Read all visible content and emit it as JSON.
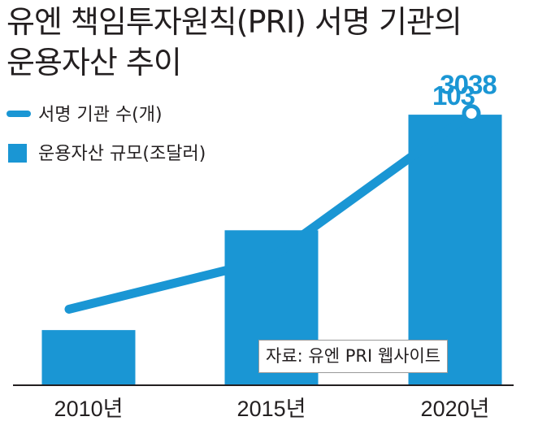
{
  "title_line1": "유엔 책임투자원칙(PRI) 서명 기관의",
  "title_line2": "운용자산 추이",
  "source": "자료: 유엔 PRI 웹사이트",
  "colors": {
    "line": "#1a96d4",
    "bar": "#1a96d4",
    "value_label": "#1a96d4",
    "text": "#231f20"
  },
  "chart_data": {
    "type": "bar",
    "title": "유엔 책임투자원칙(PRI) 서명 기관의 운용자산 추이",
    "categories": [
      "2010년",
      "2015년",
      "2020년"
    ],
    "series": [
      {
        "name": "운용자산 규모(조달러)",
        "type": "bar",
        "values": [
          21,
          59,
          103
        ],
        "labels": [
          "",
          "",
          "103"
        ]
      },
      {
        "name": "서명 기관 수(개)",
        "type": "line",
        "values": [
          850,
          1400,
          3038
        ],
        "labels": [
          "",
          "",
          "3038"
        ]
      }
    ],
    "xlabel": "",
    "ylabel": "",
    "ylim_bar": [
      0,
      125
    ],
    "ylim_line": [
      0,
      3670
    ],
    "legend": "top-left",
    "grid": false
  }
}
